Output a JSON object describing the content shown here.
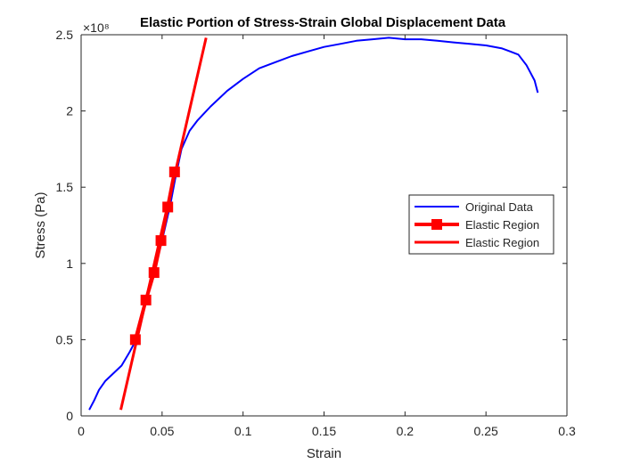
{
  "chart_data": {
    "type": "line",
    "title": "Elastic Portion of Stress-Strain Global Displacement Data",
    "xlabel": "Strain",
    "ylabel": "Stress (Pa)",
    "y_exponent_label": "×10⁸",
    "xlim": [
      0,
      0.3
    ],
    "ylim": [
      0,
      2.5
    ],
    "x_ticks": [
      0,
      0.05,
      0.1,
      0.15,
      0.2,
      0.25,
      0.3
    ],
    "x_tick_labels": [
      "0",
      "0.05",
      "0.1",
      "0.15",
      "0.2",
      "0.25",
      "0.3"
    ],
    "y_ticks": [
      0,
      0.5,
      1,
      1.5,
      2,
      2.5
    ],
    "y_tick_labels": [
      "0",
      "0.5",
      "1",
      "1.5",
      "2",
      "2.5"
    ],
    "grid": false,
    "legend_position": "right",
    "series": [
      {
        "name": "Original Data",
        "color": "#0000ff",
        "style": "line",
        "points": [
          [
            0.005,
            0.04
          ],
          [
            0.008,
            0.1
          ],
          [
            0.011,
            0.17
          ],
          [
            0.015,
            0.23
          ],
          [
            0.02,
            0.28
          ],
          [
            0.025,
            0.33
          ],
          [
            0.03,
            0.42
          ],
          [
            0.035,
            0.52
          ],
          [
            0.04,
            0.75
          ],
          [
            0.045,
            0.94
          ],
          [
            0.05,
            1.15
          ],
          [
            0.055,
            1.38
          ],
          [
            0.058,
            1.55
          ],
          [
            0.062,
            1.75
          ],
          [
            0.067,
            1.87
          ],
          [
            0.072,
            1.94
          ],
          [
            0.08,
            2.03
          ],
          [
            0.09,
            2.13
          ],
          [
            0.1,
            2.21
          ],
          [
            0.11,
            2.28
          ],
          [
            0.12,
            2.32
          ],
          [
            0.13,
            2.36
          ],
          [
            0.14,
            2.39
          ],
          [
            0.15,
            2.42
          ],
          [
            0.16,
            2.44
          ],
          [
            0.17,
            2.46
          ],
          [
            0.18,
            2.47
          ],
          [
            0.19,
            2.48
          ],
          [
            0.2,
            2.47
          ],
          [
            0.21,
            2.47
          ],
          [
            0.22,
            2.46
          ],
          [
            0.23,
            2.45
          ],
          [
            0.24,
            2.44
          ],
          [
            0.25,
            2.43
          ],
          [
            0.26,
            2.41
          ],
          [
            0.265,
            2.39
          ],
          [
            0.27,
            2.37
          ],
          [
            0.275,
            2.3
          ],
          [
            0.28,
            2.2
          ],
          [
            0.282,
            2.12
          ]
        ]
      },
      {
        "name": "Elastic Region",
        "color": "#ff0000",
        "style": "line-square-markers",
        "points": [
          [
            0.0335,
            0.5
          ],
          [
            0.04,
            0.76
          ],
          [
            0.045,
            0.94
          ],
          [
            0.0493,
            1.15
          ],
          [
            0.0535,
            1.37
          ],
          [
            0.0577,
            1.6
          ]
        ]
      },
      {
        "name": "Elastic Region",
        "color": "#ff0000",
        "style": "line",
        "points": [
          [
            0.0245,
            0.04
          ],
          [
            0.0772,
            2.48
          ]
        ]
      }
    ]
  }
}
